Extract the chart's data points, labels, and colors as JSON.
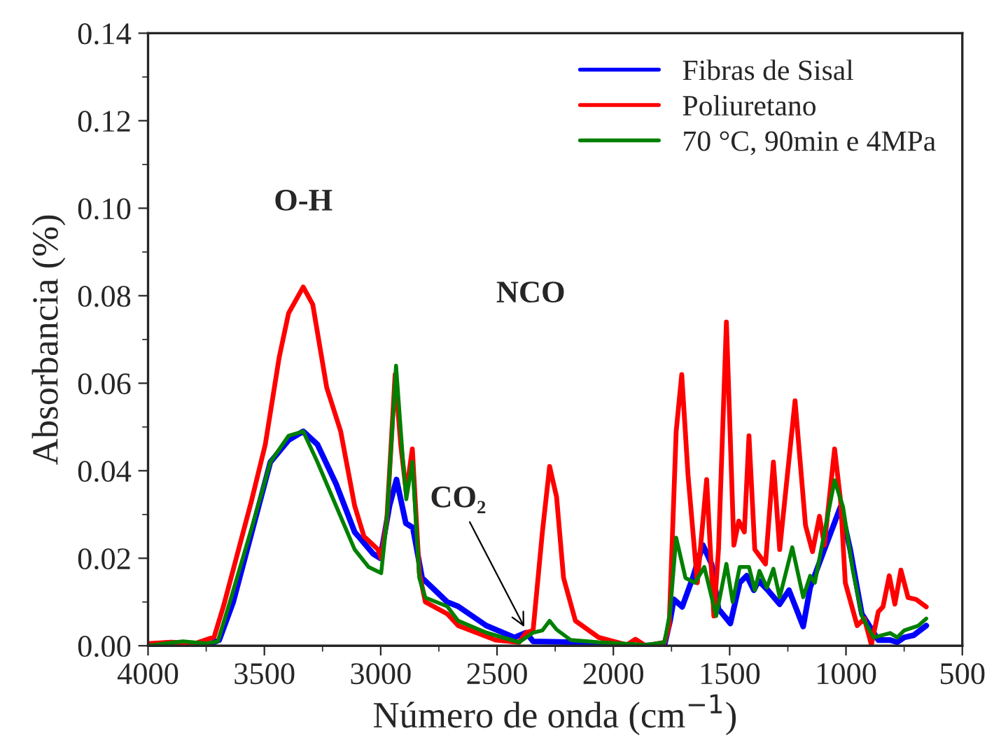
{
  "chart_data": {
    "type": "line",
    "xlabel": "Número de onda (cm$^{−1}$)",
    "ylabel": "Absorbancia (%)",
    "xlim": [
      4000,
      500
    ],
    "xticks": [
      4000,
      3500,
      3000,
      2500,
      2000,
      1500,
      1000,
      500
    ],
    "ylim": [
      0,
      0.14
    ],
    "yticks": [
      {
        "value": 0,
        "label": "0.00"
      },
      {
        "value": 0.02,
        "label": "0.02"
      },
      {
        "value": 0.04,
        "label": "0.04"
      },
      {
        "value": 0.06,
        "label": "0.06"
      },
      {
        "value": 0.08,
        "label": "0.08"
      },
      {
        "value": 0.1,
        "label": "0.10"
      },
      {
        "value": 0.12,
        "label": "0.12"
      },
      {
        "value": 0.14,
        "label": "0.14"
      }
    ],
    "legend": "top right",
    "grid": false,
    "marker": "none",
    "line_style": "solid",
    "annotations": [
      {
        "text": "O-H",
        "x": 3333,
        "y": 0.082
      },
      "NCO",
      {
        "text": "CO₂",
        "x": 2375,
        "y": 0.0035
      }
    ],
    "series": [
      {
        "name": "Fibras de Sisal",
        "color": "#0000ff",
        "x": [
          4000,
          3850,
          3750,
          3694,
          3634,
          3554,
          3474,
          3396,
          3333,
          3272,
          3192,
          3112,
          3032,
          3002,
          2962,
          2932,
          2892,
          2862,
          2822,
          2714,
          2667,
          2546,
          2425,
          2375,
          2345,
          2163,
          1901,
          1780,
          1756,
          1740,
          1704,
          1659,
          1615,
          1578,
          1548,
          1497,
          1457,
          1427,
          1396,
          1376,
          1336,
          1285,
          1245,
          1184,
          1154,
          1093,
          1023,
          982,
          932,
          861,
          810,
          780,
          750,
          709,
          655
        ],
        "values": [
          0,
          0,
          0,
          0.0013,
          0.01,
          0.026,
          0.042,
          0.047,
          0.049,
          0.046,
          0.037,
          0.026,
          0.021,
          0.02,
          0.032,
          0.038,
          0.028,
          0.027,
          0.0155,
          0.01,
          0.009,
          0.0046,
          0.0019,
          0.003,
          0.001,
          0.0008,
          0,
          0.0002,
          0.0057,
          0.0106,
          0.0089,
          0.0155,
          0.023,
          0.0187,
          0.0084,
          0.0051,
          0.0144,
          0.016,
          0.0127,
          0.0149,
          0.0127,
          0.0095,
          0.0127,
          0.0044,
          0.0133,
          0.022,
          0.0318,
          0.022,
          0.0073,
          0.0013,
          0.0013,
          0.0008,
          0.0019,
          0.0024,
          0.0046
        ]
      },
      {
        "name": "Poliuretano",
        "color": "#ff0000",
        "x": [
          4000,
          3900,
          3800,
          3716,
          3676,
          3616,
          3556,
          3496,
          3436,
          3396,
          3333,
          3292,
          3232,
          3172,
          3112,
          3072,
          3012,
          2998,
          2974,
          2938,
          2914,
          2890,
          2864,
          2834,
          2808,
          2714,
          2667,
          2506,
          2405,
          2375,
          2345,
          2305,
          2274,
          2244,
          2214,
          2163,
          2063,
          1942,
          1905,
          1861,
          1780,
          1760,
          1730,
          1706,
          1679,
          1639,
          1599,
          1568,
          1548,
          1514,
          1482,
          1461,
          1437,
          1417,
          1392,
          1346,
          1312,
          1285,
          1219,
          1174,
          1144,
          1114,
          1093,
          1049,
          1023,
          1003,
          952,
          921,
          891,
          861,
          841,
          814,
          790,
          764,
          733,
          699,
          655
        ],
        "values": [
          0.0005,
          0.0008,
          0.0005,
          0.002,
          0.009,
          0.021,
          0.033,
          0.046,
          0.066,
          0.076,
          0.082,
          0.078,
          0.059,
          0.049,
          0.032,
          0.025,
          0.022,
          0.02,
          0.0285,
          0.062,
          0.046,
          0.035,
          0.045,
          0.0166,
          0.01,
          0.0073,
          0.0046,
          0.0013,
          0.0008,
          0.003,
          0.0035,
          0.026,
          0.041,
          0.034,
          0.0155,
          0.0057,
          0.0019,
          0.0002,
          0.0015,
          0,
          0.0008,
          0.0046,
          0.049,
          0.062,
          0.039,
          0.0144,
          0.038,
          0.0068,
          0.022,
          0.074,
          0.023,
          0.0285,
          0.026,
          0.048,
          0.022,
          0.0187,
          0.042,
          0.022,
          0.056,
          0.0275,
          0.0215,
          0.0296,
          0.023,
          0.045,
          0.033,
          0.0144,
          0.0046,
          0.0062,
          0.0002,
          0.0078,
          0.0089,
          0.016,
          0.0095,
          0.0173,
          0.011,
          0.0106,
          0.0089
        ]
      },
      {
        "name": "70 °C, 90min e 4MPa",
        "color": "#008000",
        "x": [
          4000,
          3850,
          3750,
          3700,
          3654,
          3554,
          3474,
          3396,
          3333,
          3272,
          3192,
          3112,
          3052,
          2998,
          2974,
          2934,
          2904,
          2890,
          2864,
          2834,
          2808,
          2714,
          2667,
          2546,
          2405,
          2345,
          2305,
          2274,
          2244,
          2183,
          2063,
          1860,
          1780,
          1756,
          1730,
          1690,
          1649,
          1609,
          1558,
          1514,
          1487,
          1457,
          1417,
          1392,
          1372,
          1340,
          1312,
          1285,
          1231,
          1184,
          1154,
          1134,
          1103,
          1049,
          1013,
          972,
          932,
          881,
          810,
          780,
          750,
          689,
          655
        ],
        "values": [
          0,
          0.001,
          0.0005,
          0.001,
          0.009,
          0.027,
          0.042,
          0.048,
          0.049,
          0.042,
          0.032,
          0.022,
          0.018,
          0.0166,
          0.0285,
          0.064,
          0.042,
          0.0335,
          0.042,
          0.0155,
          0.011,
          0.009,
          0.0057,
          0.003,
          0.0008,
          0.003,
          0.0035,
          0.0057,
          0.0037,
          0.0013,
          0.0008,
          0.0002,
          0.0008,
          0.0078,
          0.0247,
          0.0155,
          0.0144,
          0.018,
          0.0068,
          0.0187,
          0.01,
          0.018,
          0.018,
          0.0127,
          0.0171,
          0.0133,
          0.0176,
          0.0111,
          0.0225,
          0.0111,
          0.016,
          0.0144,
          0.023,
          0.0378,
          0.0318,
          0.0176,
          0.0068,
          0.0019,
          0.0029,
          0.0019,
          0.0035,
          0.0046,
          0.0062
        ]
      }
    ]
  }
}
